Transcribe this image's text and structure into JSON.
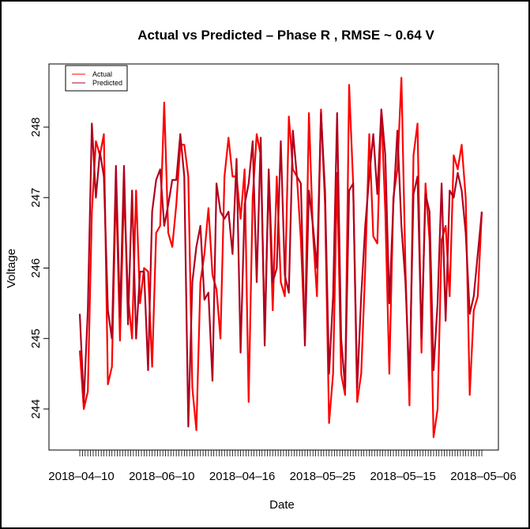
{
  "chart_data": {
    "type": "line",
    "title": "Actual vs Predicted – Phase R , RMSE ~ 0.64 V",
    "xlabel": "Date",
    "ylabel": "Voltage",
    "ylim": [
      243.5,
      248.9
    ],
    "yticks": [
      244,
      245,
      246,
      247,
      248
    ],
    "xtick_labels": [
      {
        "index": 0,
        "label": "2018–04–10"
      },
      {
        "index": 20,
        "label": "2018–06–10"
      },
      {
        "index": 40,
        "label": "2018–04–16"
      },
      {
        "index": 60,
        "label": "2018–05–25"
      },
      {
        "index": 80,
        "label": "2018–05–15"
      },
      {
        "index": 100,
        "label": "2018–05–06"
      }
    ],
    "grid": false,
    "legend_position": "top-left",
    "series": [
      {
        "name": "Actual",
        "color": "#ff0000",
        "values": [
          244.83,
          244.0,
          244.25,
          246.8,
          247.8,
          247.6,
          247.9,
          244.35,
          244.6,
          247.2,
          244.97,
          247.1,
          245.6,
          245.0,
          247.1,
          245.5,
          246.0,
          245.95,
          244.6,
          246.5,
          246.6,
          248.35,
          246.5,
          246.3,
          246.9,
          247.75,
          247.75,
          247.3,
          244.3,
          243.7,
          245.8,
          246.2,
          246.85,
          245.9,
          245.7,
          245.0,
          247.3,
          247.85,
          247.3,
          247.3,
          246.7,
          247.4,
          244.1,
          247.0,
          247.9,
          247.6,
          245.1,
          247.3,
          245.4,
          247.3,
          245.8,
          245.6,
          248.15,
          247.4,
          247.3,
          246.4,
          245.0,
          248.2,
          246.5,
          245.6,
          248.25,
          246.9,
          243.8,
          244.5,
          247.35,
          244.5,
          244.2,
          248.6,
          247.2,
          244.1,
          244.5,
          246.0,
          247.9,
          246.45,
          246.35,
          248.25,
          246.8,
          244.5,
          247.0,
          247.4,
          248.7,
          246.0,
          244.05,
          247.6,
          248.05,
          244.8,
          247.2,
          246.4,
          243.6,
          244.0,
          246.4,
          246.6,
          245.6,
          247.6,
          247.4,
          247.75,
          247.0,
          244.2,
          245.4,
          245.6,
          246.8
        ]
      },
      {
        "name": "Predicted",
        "color": "#b0001e",
        "values": [
          245.35,
          244.1,
          245.4,
          248.05,
          247.0,
          247.65,
          247.3,
          245.4,
          245.0,
          247.45,
          245.3,
          247.45,
          245.2,
          247.1,
          245.0,
          245.95,
          245.95,
          244.55,
          246.8,
          247.25,
          247.4,
          246.6,
          246.9,
          247.25,
          247.25,
          247.9,
          247.3,
          243.75,
          245.8,
          246.3,
          246.6,
          245.55,
          245.65,
          244.4,
          247.2,
          246.8,
          246.7,
          246.8,
          246.2,
          247.55,
          244.8,
          246.9,
          247.2,
          247.8,
          245.8,
          247.85,
          244.9,
          247.4,
          245.8,
          246.0,
          247.8,
          245.9,
          245.65,
          247.95,
          247.3,
          247.2,
          244.9,
          247.1,
          246.6,
          246.0,
          248.2,
          247.1,
          244.5,
          245.6,
          248.2,
          245.0,
          244.3,
          247.1,
          247.2,
          244.3,
          245.6,
          246.6,
          247.3,
          247.9,
          247.05,
          248.25,
          247.6,
          245.5,
          246.9,
          247.95,
          246.6,
          245.8,
          244.4,
          247.05,
          247.3,
          245.0,
          247.05,
          246.8,
          244.55,
          245.5,
          247.2,
          245.25,
          247.1,
          247.0,
          247.35,
          247.1,
          246.5,
          245.35,
          245.6,
          246.2,
          246.8
        ]
      }
    ]
  }
}
